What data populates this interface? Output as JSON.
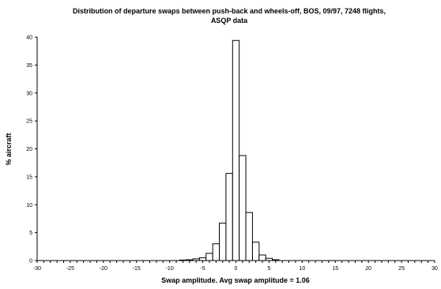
{
  "chart_data": {
    "type": "bar",
    "title_line1": "Distribution of departure swaps between push-back and wheels-off, BOS, 09/97, 7248 flights,",
    "title_line2": "ASQP data",
    "xlabel": "Swap amplitude. Avg swap amplitude = 1.06",
    "ylabel": "% aircraft",
    "xlim": [
      -30,
      30
    ],
    "ylim": [
      0,
      40
    ],
    "x_ticks": [
      -30,
      -25,
      -20,
      -15,
      -10,
      -5,
      0,
      5,
      10,
      15,
      20,
      25,
      30
    ],
    "y_ticks": [
      0,
      5,
      10,
      15,
      20,
      25,
      30,
      35,
      40
    ],
    "grid": false,
    "bars": [
      {
        "x": -8,
        "value": 0.1
      },
      {
        "x": -7,
        "value": 0.15
      },
      {
        "x": -6,
        "value": 0.3
      },
      {
        "x": -5,
        "value": 0.5
      },
      {
        "x": -4,
        "value": 1.3
      },
      {
        "x": -3,
        "value": 3.0
      },
      {
        "x": -2,
        "value": 6.7
      },
      {
        "x": -1,
        "value": 15.6
      },
      {
        "x": 0,
        "value": 39.4
      },
      {
        "x": 1,
        "value": 18.8
      },
      {
        "x": 2,
        "value": 8.6
      },
      {
        "x": 3,
        "value": 3.3
      },
      {
        "x": 4,
        "value": 1.0
      },
      {
        "x": 5,
        "value": 0.4
      },
      {
        "x": 6,
        "value": 0.15
      }
    ]
  }
}
